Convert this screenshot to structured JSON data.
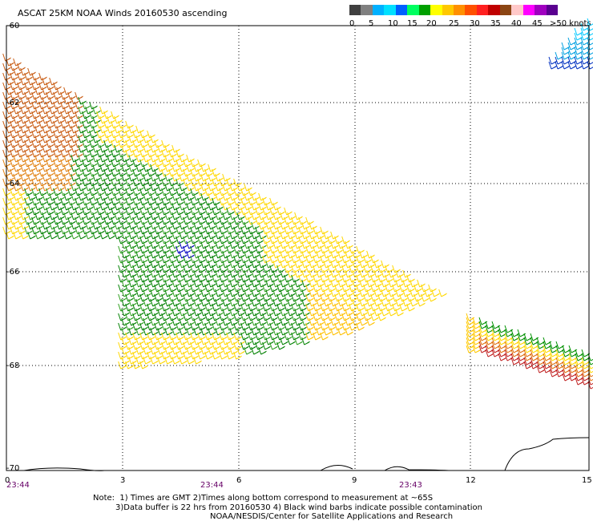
{
  "title": "ASCAT 25KM NOAA Winds 20160530 ascending",
  "legend": {
    "colors": [
      "#404040",
      "#808080",
      "#00b0ff",
      "#00e0ff",
      "#0060ff",
      "#00ff60",
      "#00a000",
      "#ffff00",
      "#ffc800",
      "#ff9000",
      "#ff5000",
      "#ff2020",
      "#c00000",
      "#8b4513",
      "#ffc8c8",
      "#ff00ff",
      "#a000c0",
      "#5a0090"
    ],
    "labels": [
      "0",
      "5",
      "10",
      "15",
      "20",
      "25",
      "30",
      "35",
      "40",
      "45",
      ">50 knots"
    ]
  },
  "y_labels": [
    "-60",
    "-62",
    "-64",
    "-66",
    "-68",
    "-70"
  ],
  "x_labels": [
    "0",
    "3",
    "6",
    "9",
    "12",
    "15"
  ],
  "time_labels": [
    "23:44",
    "23:44",
    "23:43"
  ],
  "notes": [
    "Note:  1) Times are GMT 2)Times along bottom correspond to measurement at ~65S",
    "3)Data buffer is 22 hrs from 20160530 4) Black wind barbs indicate possible contamination",
    "NOAA/NESDIS/Center for Satellite Applications and Research"
  ],
  "map_data": {
    "lon_range": [
      0,
      15
    ],
    "lat_range": [
      -60,
      -70
    ],
    "swaths": [
      {
        "name": "main",
        "color_zones": [
          "orange-red",
          "yellow",
          "green",
          "blue"
        ]
      },
      {
        "name": "east",
        "color_zones": [
          "green",
          "yellow",
          "orange",
          "red"
        ]
      },
      {
        "name": "northeast",
        "color_zones": [
          "cyan",
          "blue"
        ]
      }
    ]
  }
}
